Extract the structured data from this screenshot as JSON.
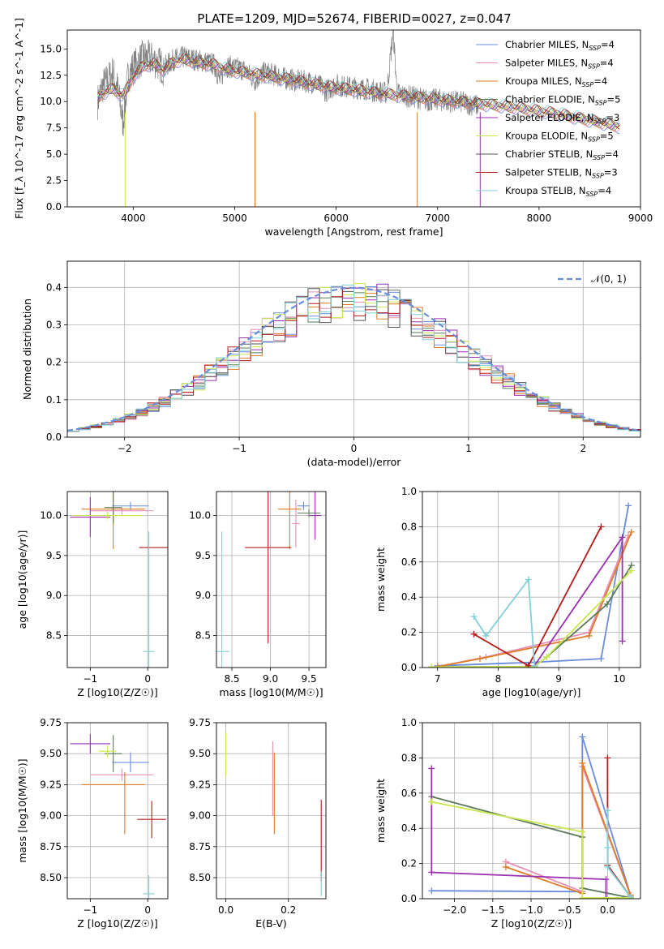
{
  "title": "PLATE=1209, MJD=52674, FIBERID=0027, z=0.047",
  "models": [
    {
      "name": "Chabrier MILES",
      "nssp": "4",
      "color": "#6a8ddb"
    },
    {
      "name": "Salpeter MILES",
      "nssp": "4",
      "color": "#e88fb6"
    },
    {
      "name": "Kroupa MILES",
      "nssp": "4",
      "color": "#e07b27"
    },
    {
      "name": "Chabrier ELODIE",
      "nssp": "5",
      "color": "#5a7a5a"
    },
    {
      "name": "Salpeter ELODIE",
      "nssp": "3",
      "color": "#9b2fb0"
    },
    {
      "name": "Kroupa ELODIE",
      "nssp": "5",
      "color": "#c9e84e"
    },
    {
      "name": "Chabrier STELIB",
      "nssp": "4",
      "color": "#555555"
    },
    {
      "name": "Salpeter STELIB",
      "nssp": "3",
      "color": "#b31b1b"
    },
    {
      "name": "Kroupa STELIB",
      "nssp": "4",
      "color": "#80d0d8"
    }
  ],
  "chart_data": [
    {
      "id": "spectrum",
      "type": "line",
      "xlabel": "wavelength [Angstrom, rest frame]",
      "ylabel": "Flux [f_λ 10^-17 erg cm^-2 s^-1 A^-1]",
      "xlim": [
        3350,
        9000
      ],
      "ylim": [
        0,
        16.8
      ],
      "xticks": [
        4000,
        5000,
        6000,
        7000,
        8000,
        9000
      ],
      "yticks": [
        0.0,
        2.5,
        5.0,
        7.5,
        10.0,
        12.5,
        15.0
      ],
      "observed_color": "#808080",
      "observed": {
        "x": [
          3650,
          3700,
          3750,
          3800,
          3850,
          3900,
          3950,
          4000,
          4100,
          4200,
          4300,
          4400,
          4500,
          4600,
          4700,
          4800,
          4860,
          4900,
          5000,
          5100,
          5200,
          5300,
          5400,
          5500,
          5600,
          5700,
          5800,
          5900,
          6000,
          6100,
          6200,
          6300,
          6400,
          6500,
          6563,
          6600,
          6700,
          6800,
          6900,
          7000,
          7100,
          7200,
          7300,
          7400
        ],
        "y": [
          10.0,
          11.5,
          12.0,
          12.8,
          11.0,
          8.0,
          12.5,
          13.2,
          14.2,
          14.0,
          13.2,
          14.0,
          14.2,
          14.0,
          13.8,
          13.5,
          11.8,
          13.4,
          13.2,
          13.0,
          12.0,
          12.8,
          12.5,
          12.2,
          12.0,
          11.9,
          11.8,
          11.0,
          11.6,
          11.4,
          11.3,
          11.2,
          11.0,
          10.8,
          16.8,
          10.8,
          10.5,
          10.4,
          10.1,
          10.2,
          10.0,
          10.0,
          9.8,
          9.6
        ]
      },
      "model": {
        "x": [
          3650,
          3700,
          3800,
          3900,
          4000,
          4100,
          4200,
          4300,
          4400,
          4500,
          4600,
          4700,
          4800,
          4900,
          5000,
          5200,
          5400,
          5600,
          5800,
          6000,
          6200,
          6400,
          6600,
          6800,
          7000,
          7200,
          7400,
          7600,
          7800,
          8000,
          8200,
          8400,
          8600,
          8800
        ],
        "y": [
          10.3,
          10.8,
          11.2,
          10.5,
          12.4,
          13.4,
          13.6,
          13.0,
          13.8,
          14.0,
          13.8,
          13.6,
          13.5,
          13.1,
          12.9,
          12.6,
          12.3,
          12.0,
          11.6,
          11.3,
          11.1,
          10.8,
          10.6,
          10.4,
          10.2,
          10.0,
          9.8,
          9.6,
          9.4,
          9.1,
          8.8,
          8.4,
          8.0,
          7.6
        ]
      }
    },
    {
      "id": "residual_histogram",
      "type": "line",
      "xlabel": "(data-model)/error",
      "ylabel": "Normed distribution",
      "xlim": [
        -2.5,
        2.5
      ],
      "ylim": [
        0,
        0.47
      ],
      "xticks": [
        -2,
        -1,
        0,
        1,
        2
      ],
      "yticks": [
        0.0,
        0.1,
        0.2,
        0.3,
        0.4
      ],
      "reference": {
        "label": "𝒩(0, 1)",
        "color": "#6a8ddb"
      }
    },
    {
      "id": "age_vs_metallicity",
      "type": "scatter",
      "xlabel": "Z [log10(Z/Z☉)]",
      "ylabel": "age  [log10(age/yr)]",
      "xlim": [
        -1.4,
        0.35
      ],
      "ylim": [
        8.1,
        10.3
      ],
      "xticks": [
        -1,
        0
      ],
      "yticks": [
        8.5,
        9.0,
        9.5,
        10.0
      ],
      "points": [
        {
          "model": 0,
          "x": -0.3,
          "y": 10.12,
          "xerr": 0.32,
          "yerr": 0.05
        },
        {
          "model": 1,
          "x": -0.45,
          "y": 10.06,
          "xerr": 0.55,
          "yerr": 0.05
        },
        {
          "model": 2,
          "x": -0.6,
          "y": 10.08,
          "xerr": 0.55,
          "yerr": 0.5
        },
        {
          "model": 3,
          "x": -0.6,
          "y": 10.1,
          "xerr": 0.15,
          "yerr": 0.2
        },
        {
          "model": 4,
          "x": -1.0,
          "y": 9.98,
          "xerr": 0.35,
          "yerr": 0.25
        },
        {
          "model": 5,
          "x": -0.7,
          "y": 10.0,
          "xerr": 0.6,
          "yerr": 0.05
        },
        {
          "model": 7,
          "x": 0.15,
          "y": 9.6,
          "xerr": 0.3,
          "yerr": 0.0
        },
        {
          "model": 8,
          "x": 0.02,
          "y": 8.3,
          "xerr": 0.1,
          "yerr": 1.5
        }
      ]
    },
    {
      "id": "age_vs_mass",
      "type": "scatter",
      "xlabel": "mass [log10(M/M☉)]",
      "xlim": [
        8.3,
        9.72
      ],
      "ylim": [
        8.1,
        10.3
      ],
      "xticks": [
        8.5,
        9.0,
        9.5
      ],
      "yticks": [
        8.5,
        9.0,
        9.5,
        10.0
      ],
      "points": [
        {
          "model": 0,
          "x": 9.43,
          "y": 10.12,
          "xerr": 0.08,
          "yerr": 0.05
        },
        {
          "model": 1,
          "x": 9.33,
          "y": 9.9,
          "xerr": 0.05,
          "yerr": 0.3
        },
        {
          "model": 2,
          "x": 9.25,
          "y": 10.08,
          "xerr": 0.15,
          "yerr": 0.5
        },
        {
          "model": 3,
          "x": 9.5,
          "y": 10.03,
          "xerr": 0.15,
          "yerr": 0.05
        },
        {
          "model": 4,
          "x": 9.58,
          "y": 10.0,
          "xerr": 0.08,
          "yerr": 0.3
        },
        {
          "model": 7,
          "x": 8.97,
          "y": 9.6,
          "xerr": 0.3,
          "yerr": 1.2
        },
        {
          "model": 8,
          "x": 8.37,
          "y": 8.3,
          "xerr": 0.1,
          "yerr": 1.5
        }
      ]
    },
    {
      "id": "weight_vs_age",
      "type": "line",
      "xlabel": "age  [log10(age/yr)]",
      "ylabel": "mass weight",
      "xlim": [
        6.75,
        10.35
      ],
      "ylim": [
        0,
        1
      ],
      "xticks": [
        7,
        8,
        9,
        10
      ],
      "yticks": [
        0.0,
        0.2,
        0.4,
        0.6,
        0.8,
        1.0
      ],
      "series": [
        {
          "model": 0,
          "x": [
            7.0,
            8.6,
            9.7,
            10.15
          ],
          "y": [
            0.01,
            0.03,
            0.05,
            0.92
          ]
        },
        {
          "model": 1,
          "x": [
            7.0,
            7.8,
            9.5,
            10.15
          ],
          "y": [
            0.005,
            0.06,
            0.2,
            0.75
          ]
        },
        {
          "model": 2,
          "x": [
            7.0,
            7.7,
            9.5,
            10.2
          ],
          "y": [
            0.005,
            0.05,
            0.18,
            0.77
          ]
        },
        {
          "model": 3,
          "x": [
            6.9,
            8.6,
            8.8,
            9.8,
            10.2
          ],
          "y": [
            0.003,
            0.005,
            0.06,
            0.36,
            0.58
          ]
        },
        {
          "model": 4,
          "x": [
            8.6,
            10.05,
            10.05
          ],
          "y": [
            0.01,
            0.74,
            0.15
          ]
        },
        {
          "model": 5,
          "x": [
            6.9,
            8.6,
            8.8,
            10.2
          ],
          "y": [
            0.003,
            0.005,
            0.06,
            0.55
          ]
        },
        {
          "model": 7,
          "x": [
            7.6,
            8.5,
            9.7
          ],
          "y": [
            0.19,
            0.01,
            0.8
          ]
        },
        {
          "model": 8,
          "x": [
            7.6,
            7.8,
            8.5,
            8.6
          ],
          "y": [
            0.29,
            0.18,
            0.5,
            0.01
          ]
        }
      ]
    },
    {
      "id": "mass_vs_metallicity",
      "type": "scatter",
      "xlabel": "Z [log10(Z/Z☉)]",
      "ylabel": "mass [log10(M/M☉)]",
      "xlim": [
        -1.4,
        0.35
      ],
      "ylim": [
        8.33,
        9.75
      ],
      "xticks": [
        -1,
        0
      ],
      "yticks": [
        8.5,
        8.75,
        9.0,
        9.25,
        9.5,
        9.75
      ],
      "points": [
        {
          "model": 0,
          "x": -0.3,
          "y": 9.43,
          "xerr": 0.32,
          "yerr": 0.08
        },
        {
          "model": 1,
          "x": -0.45,
          "y": 9.33,
          "xerr": 0.55,
          "yerr": 0.05
        },
        {
          "model": 2,
          "x": -0.6,
          "y": 9.25,
          "xerr": 0.55,
          "yerr": 0.0
        },
        {
          "model": 2,
          "x": -0.4,
          "y": 9.1,
          "xerr": 0.0,
          "yerr": 0.25
        },
        {
          "model": 3,
          "x": -0.6,
          "y": 9.5,
          "xerr": 0.15,
          "yerr": 0.15
        },
        {
          "model": 4,
          "x": -1.0,
          "y": 9.58,
          "xerr": 0.35,
          "yerr": 0.08
        },
        {
          "model": 5,
          "x": -0.7,
          "y": 9.52,
          "xerr": 0.15,
          "yerr": 0.05
        },
        {
          "model": 7,
          "x": 0.07,
          "y": 8.97,
          "xerr": 0.25,
          "yerr": 0.15
        },
        {
          "model": 8,
          "x": 0.02,
          "y": 8.37,
          "xerr": 0.1,
          "yerr": 0.15
        }
      ]
    },
    {
      "id": "mass_vs_ebv",
      "type": "scatter",
      "xlabel": "E(B-V)",
      "xlim": [
        -0.03,
        0.32
      ],
      "ylim": [
        8.33,
        9.75
      ],
      "xticks": [
        0.0,
        0.2
      ],
      "yticks": [
        8.5,
        8.75,
        9.0,
        9.25,
        9.5,
        9.75
      ],
      "points": [
        {
          "model": 5,
          "x": 0.0,
          "y": 9.5,
          "xerr": 0.0,
          "yerr": 0.18
        },
        {
          "model": 1,
          "x": 0.15,
          "y": 9.3,
          "xerr": 0.0,
          "yerr": 0.3
        },
        {
          "model": 2,
          "x": 0.155,
          "y": 9.18,
          "xerr": 0.0,
          "yerr": 0.33
        },
        {
          "model": 7,
          "x": 0.305,
          "y": 8.8,
          "xerr": 0.0,
          "yerr": 0.33
        },
        {
          "model": 8,
          "x": 0.305,
          "y": 8.45,
          "xerr": 0.0,
          "yerr": 0.1
        }
      ]
    },
    {
      "id": "weight_vs_metallicity",
      "type": "line",
      "xlabel": "Z [log10(Z/Z☉)]",
      "ylabel": "mass weight",
      "xlim": [
        -2.42,
        0.43
      ],
      "ylim": [
        0,
        1
      ],
      "xticks": [
        -2.0,
        -1.5,
        -1.0,
        -0.5,
        0.0
      ],
      "yticks": [
        0.0,
        0.2,
        0.4,
        0.6,
        0.8,
        1.0
      ],
      "series": [
        {
          "model": 0,
          "x": [
            -2.3,
            -0.33,
            -0.33,
            0.3
          ],
          "y": [
            0.045,
            0.04,
            0.92,
            0.02
          ]
        },
        {
          "model": 1,
          "x": [
            -1.33,
            -0.33,
            -0.33,
            0.3
          ],
          "y": [
            0.21,
            0.04,
            0.75,
            0.02
          ]
        },
        {
          "model": 2,
          "x": [
            -1.33,
            -0.33,
            -0.33,
            0.3
          ],
          "y": [
            0.18,
            0.03,
            0.77,
            0.02
          ]
        },
        {
          "model": 3,
          "x": [
            -2.3,
            -0.33,
            -0.33,
            0.3
          ],
          "y": [
            0.58,
            0.35,
            0.06,
            0.005
          ]
        },
        {
          "model": 4,
          "x": [
            -2.3,
            -2.3,
            -0.02,
            -0.02
          ],
          "y": [
            0.74,
            0.15,
            0.11,
            0.0
          ]
        },
        {
          "model": 5,
          "x": [
            -2.3,
            -0.33,
            -0.33,
            0.3
          ],
          "y": [
            0.55,
            0.38,
            0.005,
            0.005
          ]
        },
        {
          "model": 7,
          "x": [
            0.0,
            0.0,
            0.3
          ],
          "y": [
            0.8,
            0.19,
            0.01
          ]
        },
        {
          "model": 8,
          "x": [
            0.0,
            0.0,
            0.0,
            0.3
          ],
          "y": [
            0.5,
            0.29,
            0.18,
            0.01
          ]
        }
      ]
    }
  ]
}
